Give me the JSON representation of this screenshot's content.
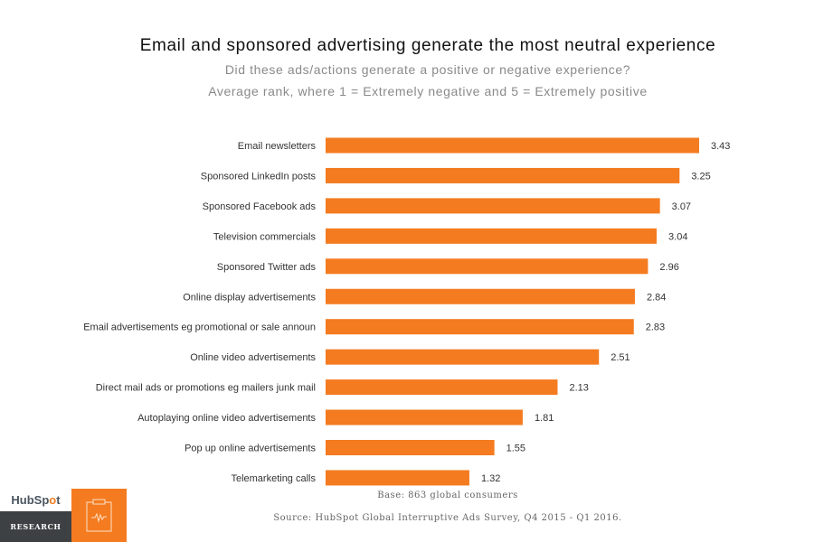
{
  "chart_data": {
    "type": "bar",
    "orientation": "horizontal",
    "title": "Email and sponsored advertising generate the most neutral experience",
    "subtitle": "Did these ads/actions generate a positive or negative experience?",
    "subtitle2": "Average rank, where 1 = Extremely negative and 5 = Extremely positive",
    "categories": [
      "Email newsletters",
      "Sponsored LinkedIn posts",
      "Sponsored Facebook ads",
      "Television commercials",
      "Sponsored Twitter ads",
      "Online display advertisements",
      "Email advertisements eg promotional or sale announ",
      "Online video advertisements",
      "Direct mail ads or promotions eg mailers junk mail",
      "Autoplaying online video advertisements",
      "Pop up online advertisements",
      "Telemarketing calls"
    ],
    "values": [
      3.43,
      3.25,
      3.07,
      3.04,
      2.96,
      2.84,
      2.83,
      2.51,
      2.13,
      1.81,
      1.55,
      1.32
    ],
    "value_labels": [
      "3.43",
      "3.25",
      "3.07",
      "3.04",
      "2.96",
      "2.84",
      "2.83",
      "2.51",
      "2.13",
      "1.81",
      "1.55",
      "1.32"
    ],
    "xlim": [
      0,
      3.43
    ],
    "grid": false,
    "bar_color": "#f47b20"
  },
  "footer": {
    "base": "Base: 863 global consumers",
    "source": "Source: HubSpot Global Interruptive Ads Survey, Q4 2015 - Q1 2016."
  },
  "logo": {
    "brand_a": "HubSp",
    "brand_o": "o",
    "brand_b": "t",
    "section": "RESEARCH"
  },
  "icons": {
    "clipboard": "clipboard-pulse-icon"
  }
}
